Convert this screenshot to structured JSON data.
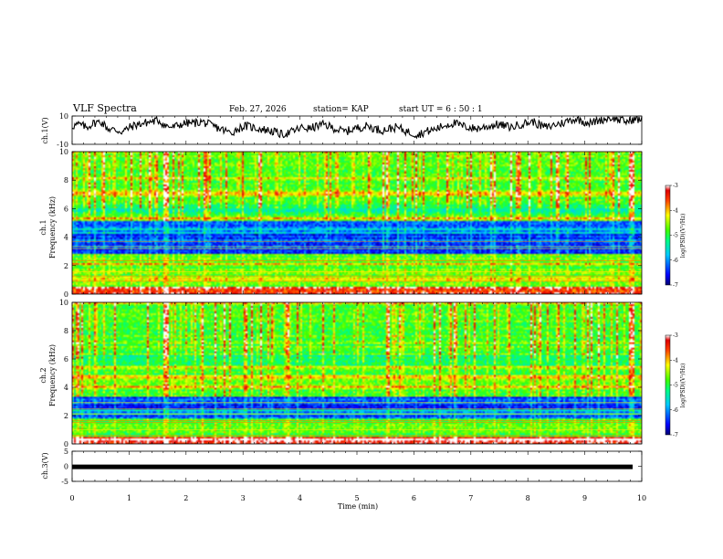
{
  "header": {
    "title": "VLF Spectra",
    "date": "Feb. 27, 2026",
    "station": "station= KAP",
    "start": "start  UT =   6  : 50 : 1"
  },
  "chart_data": [
    {
      "type": "line",
      "name": "ch1-waveform",
      "ylabel": "ch.1(V)",
      "ylim": [
        -10,
        10
      ],
      "yticks": [
        "10",
        "-10"
      ],
      "xlim": [
        0,
        10
      ],
      "description_values": "noisy waveform oscillating roughly between -8 and +9 V",
      "values": [
        3,
        4,
        2,
        5,
        6,
        1,
        0,
        -1,
        2,
        4,
        5,
        6,
        7,
        3,
        2,
        4,
        5,
        5,
        6,
        4,
        2,
        0,
        -2,
        1,
        3,
        2,
        1,
        0,
        -1,
        -3,
        -2,
        0,
        2,
        1,
        3,
        4,
        2,
        0,
        -1,
        1,
        2,
        3,
        1,
        0,
        1,
        2,
        0,
        -2,
        -3,
        -1,
        0,
        2,
        4,
        5,
        3,
        2,
        1,
        2,
        3,
        4,
        3,
        2,
        4,
        5,
        6,
        3,
        2,
        4,
        5,
        7,
        8,
        6,
        5,
        7,
        8,
        9,
        7,
        6,
        8,
        7
      ]
    },
    {
      "type": "heatmap",
      "name": "ch1-spectrogram",
      "ylabel": "ch.1",
      "ylabel2": "Frequency (kHz)",
      "xlim": [
        0,
        10
      ],
      "ylim": [
        0,
        10
      ],
      "yticks": [
        "0",
        "2",
        "4",
        "6",
        "8",
        "10"
      ],
      "colorbar": {
        "min": -7,
        "max": -3,
        "ticks": [
          "-3",
          "-4",
          "-5",
          "-6",
          "-7"
        ],
        "label": "log(PSD)(V²/Hz)"
      },
      "description": "broadband emissions with strong impulsive vertical streaks (sferics); blue low-power band 2.8–5 kHz"
    },
    {
      "type": "heatmap",
      "name": "ch2-spectrogram",
      "ylabel": "ch.2",
      "ylabel2": "Frequency (kHz)",
      "xlim": [
        0,
        10
      ],
      "ylim": [
        0,
        10
      ],
      "yticks": [
        "0",
        "2",
        "4",
        "6",
        "8",
        "10"
      ],
      "colorbar": {
        "min": -7,
        "max": -3,
        "ticks": [
          "-3",
          "-4",
          "-5",
          "-6",
          "-7"
        ],
        "label": "log(PSD)(V²/Hz)"
      },
      "description": "broadband emissions with vertical streaks; blue low-power band 1.8–3.2 kHz"
    },
    {
      "type": "line",
      "name": "ch3-waveform",
      "ylabel": "ch.3(V)",
      "ylim": [
        -5,
        5
      ],
      "yticks": [
        "5",
        "0",
        "-5"
      ],
      "xlim": [
        0,
        10
      ],
      "level": -0.2,
      "description": "flat thick line near 0 V across full span"
    }
  ],
  "xaxis": {
    "label": "Time (min)",
    "ticks": [
      "0",
      "1",
      "2",
      "3",
      "4",
      "5",
      "6",
      "7",
      "8",
      "9",
      "10"
    ]
  },
  "colors": {
    "background": "#ffffff",
    "ink": "#000000"
  }
}
